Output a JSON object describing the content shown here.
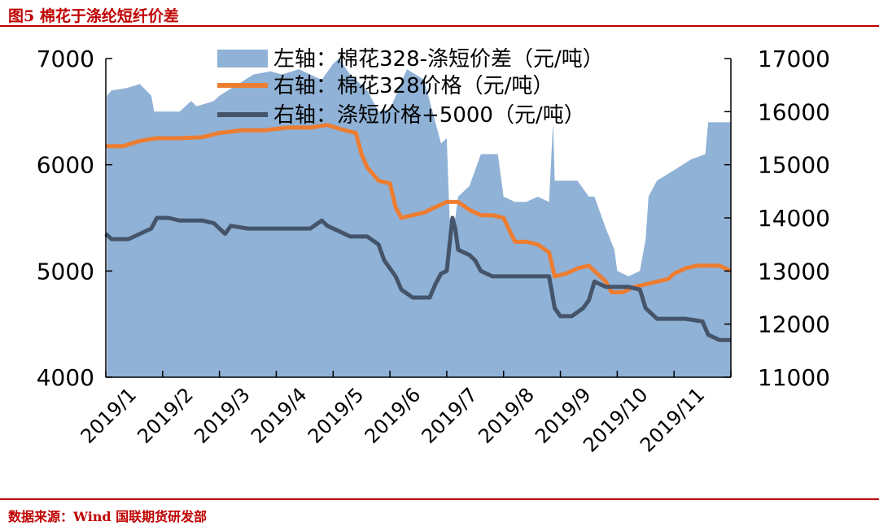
{
  "figure": {
    "title": "图5  棉花于涤纶短纤价差",
    "source": "数据来源：Wind 国联期货研发部"
  },
  "chart_data": {
    "type": "area+line",
    "dual_axis": true,
    "left_axis": {
      "ylim": [
        4000,
        7000
      ],
      "ticks": [
        "4000",
        "5000",
        "6000",
        "7000"
      ]
    },
    "right_axis": {
      "ylim": [
        11000,
        17000
      ],
      "ticks": [
        "11000",
        "12000",
        "13000",
        "14000",
        "15000",
        "16000",
        "17000"
      ]
    },
    "x_ticks": [
      "2019/1",
      "2019/2",
      "2019/3",
      "2019/4",
      "2019/5",
      "2019/6",
      "2019/7",
      "2019/8",
      "2019/9",
      "2019/10",
      "2019/11"
    ],
    "x_range": [
      0,
      11
    ],
    "grid": false,
    "legend_position": "top-center",
    "series": [
      {
        "name": "左轴：棉花328-涤短价差（元/吨）",
        "axis": "left",
        "style": "area",
        "color": "#8fb2d6",
        "points": [
          [
            0.02,
            6650
          ],
          [
            0.1,
            6700
          ],
          [
            0.35,
            6720
          ],
          [
            0.6,
            6760
          ],
          [
            0.8,
            6650
          ],
          [
            0.85,
            6500
          ],
          [
            1.0,
            6500
          ],
          [
            1.3,
            6500
          ],
          [
            1.5,
            6600
          ],
          [
            1.6,
            6550
          ],
          [
            1.9,
            6600
          ],
          [
            2.0,
            6650
          ],
          [
            2.3,
            6750
          ],
          [
            2.6,
            6850
          ],
          [
            2.9,
            6880
          ],
          [
            3.1,
            6850
          ],
          [
            3.4,
            6900
          ],
          [
            3.6,
            6850
          ],
          [
            3.8,
            6800
          ],
          [
            4.0,
            6950
          ],
          [
            4.1,
            7000
          ],
          [
            4.3,
            6850
          ],
          [
            4.6,
            6700
          ],
          [
            4.8,
            6500
          ],
          [
            5.0,
            6520
          ],
          [
            5.3,
            6900
          ],
          [
            5.6,
            6800
          ],
          [
            5.8,
            6400
          ],
          [
            5.9,
            6200
          ],
          [
            6.0,
            6250
          ],
          [
            6.05,
            5500
          ],
          [
            6.1,
            5400
          ],
          [
            6.15,
            5500
          ],
          [
            6.2,
            5700
          ],
          [
            6.4,
            5800
          ],
          [
            6.6,
            6100
          ],
          [
            6.9,
            6100
          ],
          [
            7.0,
            5700
          ],
          [
            7.2,
            5650
          ],
          [
            7.4,
            5650
          ],
          [
            7.6,
            5700
          ],
          [
            7.8,
            5650
          ],
          [
            7.87,
            6400
          ],
          [
            7.9,
            5850
          ],
          [
            8.1,
            5850
          ],
          [
            8.3,
            5850
          ],
          [
            8.5,
            5700
          ],
          [
            8.6,
            5700
          ],
          [
            8.8,
            5400
          ],
          [
            8.95,
            5200
          ],
          [
            9.0,
            5000
          ],
          [
            9.2,
            4950
          ],
          [
            9.4,
            5000
          ],
          [
            9.5,
            5300
          ],
          [
            9.55,
            5700
          ],
          [
            9.7,
            5850
          ],
          [
            10.0,
            5950
          ],
          [
            10.3,
            6050
          ],
          [
            10.55,
            6100
          ],
          [
            10.6,
            6400
          ],
          [
            10.8,
            6400
          ],
          [
            11.0,
            6400
          ]
        ]
      },
      {
        "name": "右轴：棉花328价格（元/吨）",
        "axis": "right",
        "style": "line",
        "color": "#ed7d31",
        "points": [
          [
            0,
            15350
          ],
          [
            0.3,
            15350
          ],
          [
            0.6,
            15450
          ],
          [
            0.9,
            15500
          ],
          [
            1.3,
            15500
          ],
          [
            1.7,
            15520
          ],
          [
            2.0,
            15600
          ],
          [
            2.4,
            15650
          ],
          [
            2.8,
            15650
          ],
          [
            3.2,
            15700
          ],
          [
            3.6,
            15700
          ],
          [
            3.9,
            15750
          ],
          [
            4.2,
            15650
          ],
          [
            4.4,
            15600
          ],
          [
            4.5,
            15200
          ],
          [
            4.6,
            14950
          ],
          [
            4.8,
            14700
          ],
          [
            5.0,
            14650
          ],
          [
            5.1,
            14200
          ],
          [
            5.2,
            14000
          ],
          [
            5.4,
            14050
          ],
          [
            5.6,
            14100
          ],
          [
            5.8,
            14200
          ],
          [
            6.0,
            14300
          ],
          [
            6.2,
            14300
          ],
          [
            6.4,
            14150
          ],
          [
            6.6,
            14050
          ],
          [
            6.8,
            14050
          ],
          [
            7.0,
            14000
          ],
          [
            7.2,
            13550
          ],
          [
            7.4,
            13550
          ],
          [
            7.6,
            13500
          ],
          [
            7.8,
            13350
          ],
          [
            7.9,
            12900
          ],
          [
            8.1,
            12950
          ],
          [
            8.3,
            13050
          ],
          [
            8.5,
            13100
          ],
          [
            8.6,
            13000
          ],
          [
            8.8,
            12800
          ],
          [
            8.9,
            12600
          ],
          [
            9.1,
            12600
          ],
          [
            9.3,
            12700
          ],
          [
            9.5,
            12750
          ],
          [
            9.7,
            12800
          ],
          [
            9.9,
            12850
          ],
          [
            10.0,
            12950
          ],
          [
            10.2,
            13050
          ],
          [
            10.4,
            13100
          ],
          [
            10.6,
            13100
          ],
          [
            10.8,
            13100
          ],
          [
            11.0,
            13000
          ]
        ]
      },
      {
        "name": "右轴：涤短价格+5000（元/吨）",
        "axis": "right",
        "style": "line",
        "color": "#44546a",
        "points": [
          [
            0,
            13700
          ],
          [
            0.1,
            13600
          ],
          [
            0.4,
            13600
          ],
          [
            0.6,
            13700
          ],
          [
            0.8,
            13800
          ],
          [
            0.9,
            14000
          ],
          [
            1.1,
            14000
          ],
          [
            1.3,
            13950
          ],
          [
            1.5,
            13950
          ],
          [
            1.7,
            13950
          ],
          [
            1.9,
            13900
          ],
          [
            2.0,
            13800
          ],
          [
            2.1,
            13700
          ],
          [
            2.2,
            13850
          ],
          [
            2.5,
            13800
          ],
          [
            2.8,
            13800
          ],
          [
            3.2,
            13800
          ],
          [
            3.6,
            13800
          ],
          [
            3.8,
            13950
          ],
          [
            3.9,
            13850
          ],
          [
            4.1,
            13750
          ],
          [
            4.3,
            13650
          ],
          [
            4.6,
            13650
          ],
          [
            4.8,
            13500
          ],
          [
            4.9,
            13200
          ],
          [
            5.1,
            12900
          ],
          [
            5.2,
            12650
          ],
          [
            5.4,
            12500
          ],
          [
            5.7,
            12500
          ],
          [
            5.8,
            12750
          ],
          [
            5.9,
            12950
          ],
          [
            6.0,
            13000
          ],
          [
            6.1,
            14000
          ],
          [
            6.15,
            13800
          ],
          [
            6.2,
            13400
          ],
          [
            6.4,
            13300
          ],
          [
            6.5,
            13200
          ],
          [
            6.6,
            13000
          ],
          [
            6.8,
            12900
          ],
          [
            7.0,
            12900
          ],
          [
            7.2,
            12900
          ],
          [
            7.3,
            12900
          ],
          [
            7.8,
            12900
          ],
          [
            7.9,
            12300
          ],
          [
            8.0,
            12150
          ],
          [
            8.2,
            12150
          ],
          [
            8.4,
            12300
          ],
          [
            8.5,
            12450
          ],
          [
            8.6,
            12800
          ],
          [
            8.8,
            12700
          ],
          [
            9.0,
            12700
          ],
          [
            9.2,
            12700
          ],
          [
            9.4,
            12650
          ],
          [
            9.5,
            12300
          ],
          [
            9.7,
            12100
          ],
          [
            10.0,
            12100
          ],
          [
            10.2,
            12100
          ],
          [
            10.5,
            12050
          ],
          [
            10.6,
            11800
          ],
          [
            10.8,
            11700
          ],
          [
            11.0,
            11700
          ]
        ]
      }
    ]
  }
}
